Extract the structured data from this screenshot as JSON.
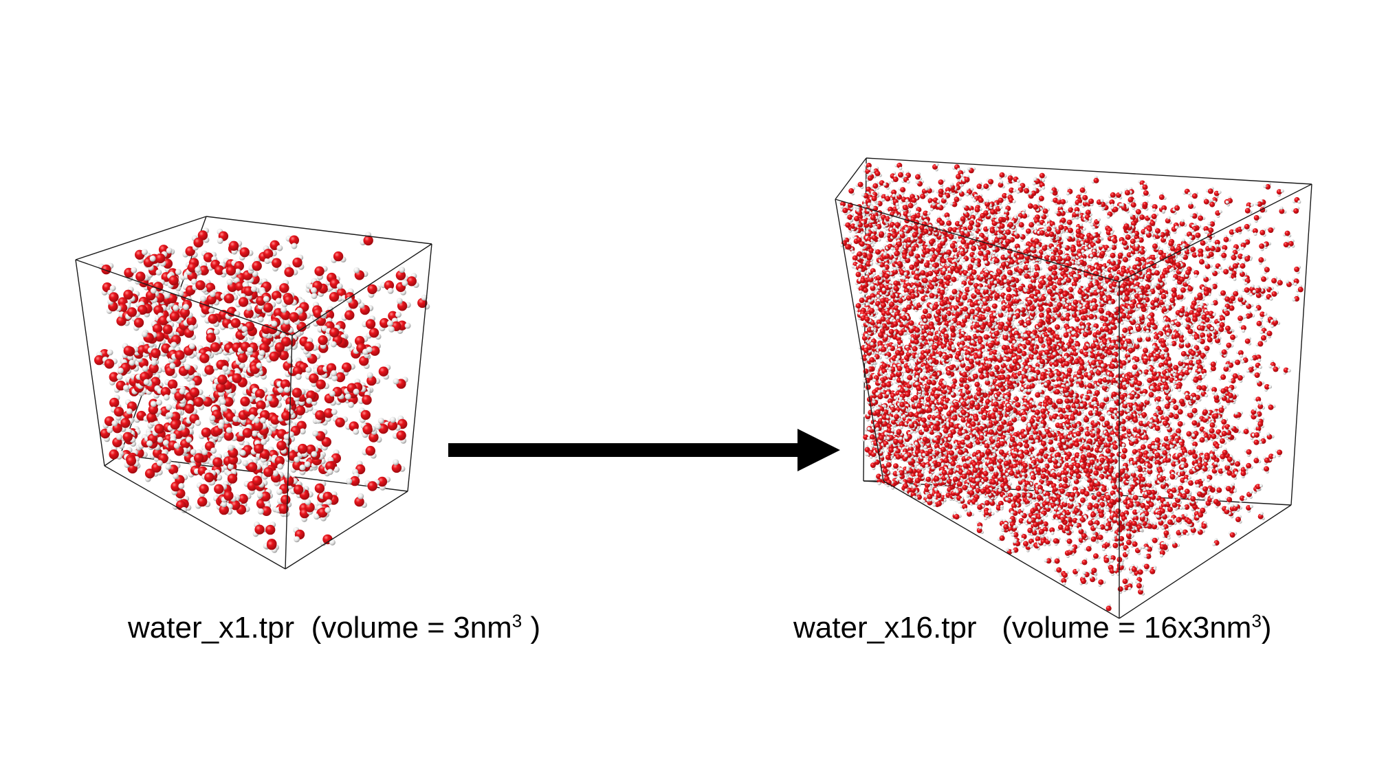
{
  "colors": {
    "background": "#ffffff",
    "oxygen": "#e0141b",
    "hydrogen": "#e9e9e9",
    "box_edge": "#1a1a1a",
    "arrow": "#000000"
  },
  "left_box": {
    "file_label": "water_x1.tpr",
    "volume_open": "(volume = 3nm",
    "volume_exp": "3",
    "volume_close": " )"
  },
  "right_box": {
    "file_label": "water_x16.tpr",
    "volume_open": "(volume = 16x3nm",
    "volume_exp": "3",
    "volume_close": ")"
  }
}
